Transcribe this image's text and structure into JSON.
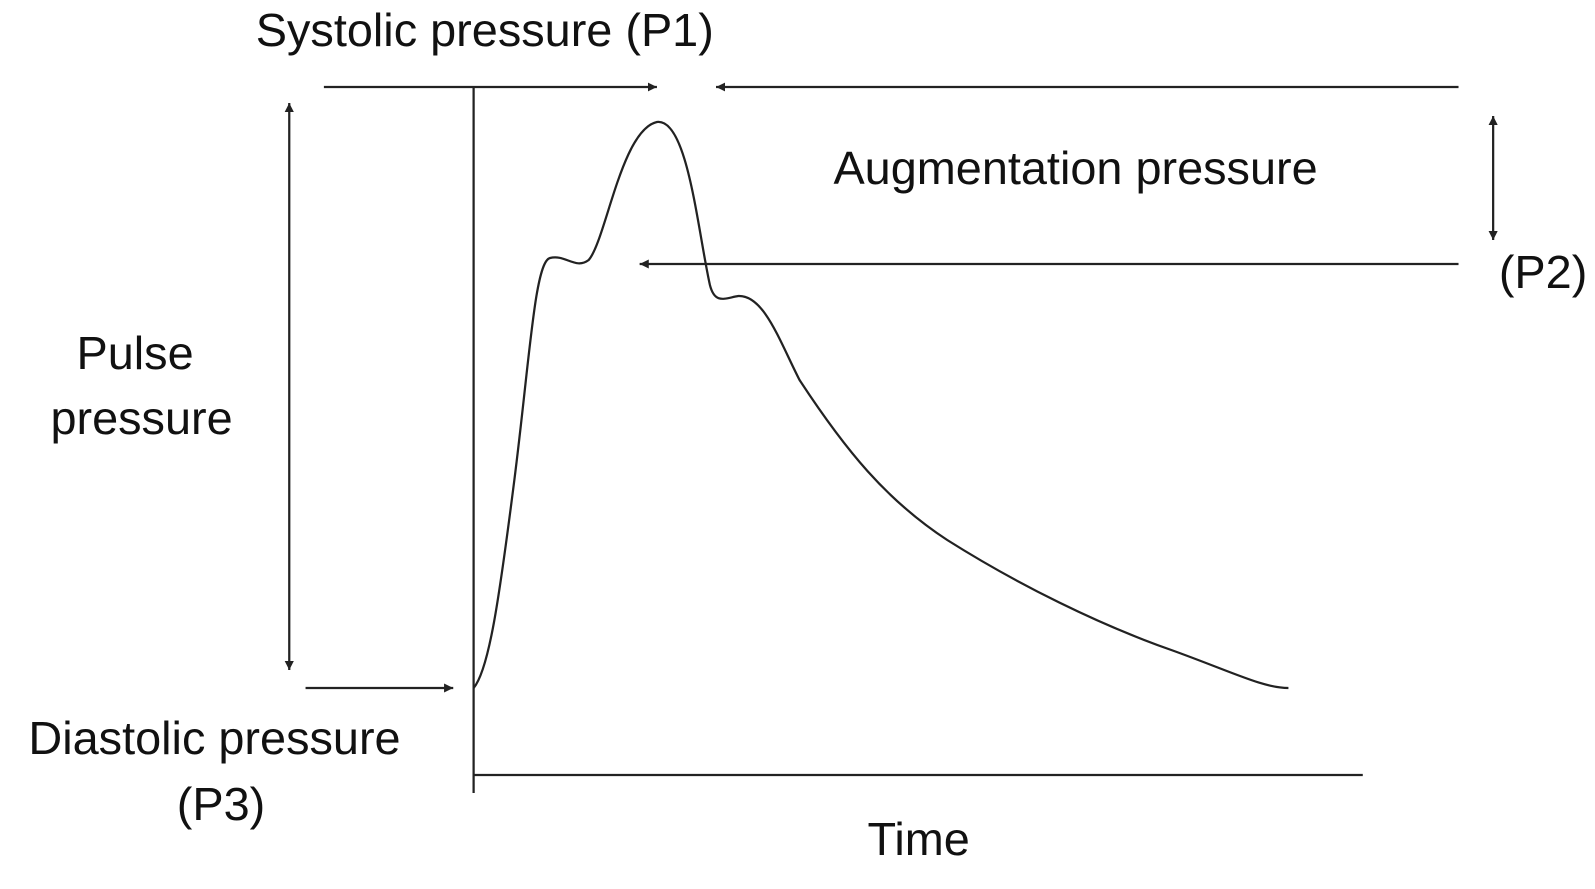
{
  "labels": {
    "systolic": "Systolic pressure (P1)",
    "augmentation": "Augmentation pressure",
    "p2": "(P2)",
    "pulse_pressure": [
      "Pulse",
      "pressure"
    ],
    "diastolic": [
      "Diastolic pressure",
      "(P3)"
    ],
    "x_axis": "Time"
  }
}
